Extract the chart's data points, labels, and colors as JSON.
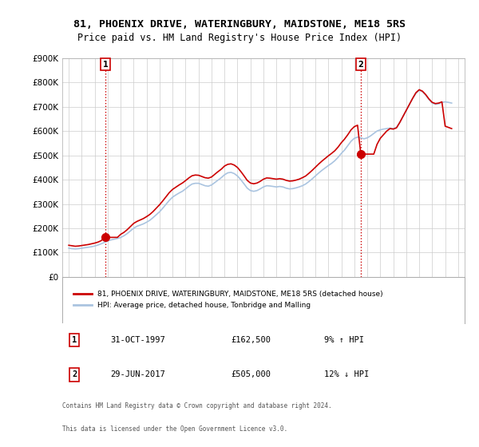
{
  "title1": "81, PHOENIX DRIVE, WATERINGBURY, MAIDSTONE, ME18 5RS",
  "title2": "Price paid vs. HM Land Registry's House Price Index (HPI)",
  "ylabel": "",
  "xlabel": "",
  "background_color": "#ffffff",
  "grid_color": "#cccccc",
  "hpi_color": "#aac4e0",
  "price_color": "#cc0000",
  "annotation1_date": "31-OCT-1997",
  "annotation1_price": "£162,500",
  "annotation1_hpi": "9% ↑ HPI",
  "annotation1_year": 1997.83,
  "annotation1_value": 162500,
  "annotation2_date": "29-JUN-2017",
  "annotation2_price": "£505,000",
  "annotation2_hpi": "12% ↓ HPI",
  "annotation2_year": 2017.5,
  "annotation2_value": 505000,
  "legend_label1": "81, PHOENIX DRIVE, WATERINGBURY, MAIDSTONE, ME18 5RS (detached house)",
  "legend_label2": "HPI: Average price, detached house, Tonbridge and Malling",
  "footer1": "Contains HM Land Registry data © Crown copyright and database right 2024.",
  "footer2": "This data is licensed under the Open Government Licence v3.0.",
  "table_row1": [
    "1",
    "31-OCT-1997",
    "£162,500",
    "9% ↑ HPI"
  ],
  "table_row2": [
    "2",
    "29-JUN-2017",
    "£505,000",
    "12% ↓ HPI"
  ],
  "hpi_years": [
    1995.0,
    1995.25,
    1995.5,
    1995.75,
    1996.0,
    1996.25,
    1996.5,
    1996.75,
    1997.0,
    1997.25,
    1997.5,
    1997.75,
    1998.0,
    1998.25,
    1998.5,
    1998.75,
    1999.0,
    1999.25,
    1999.5,
    1999.75,
    2000.0,
    2000.25,
    2000.5,
    2000.75,
    2001.0,
    2001.25,
    2001.5,
    2001.75,
    2002.0,
    2002.25,
    2002.5,
    2002.75,
    2003.0,
    2003.25,
    2003.5,
    2003.75,
    2004.0,
    2004.25,
    2004.5,
    2004.75,
    2005.0,
    2005.25,
    2005.5,
    2005.75,
    2006.0,
    2006.25,
    2006.5,
    2006.75,
    2007.0,
    2007.25,
    2007.5,
    2007.75,
    2008.0,
    2008.25,
    2008.5,
    2008.75,
    2009.0,
    2009.25,
    2009.5,
    2009.75,
    2010.0,
    2010.25,
    2010.5,
    2010.75,
    2011.0,
    2011.25,
    2011.5,
    2011.75,
    2012.0,
    2012.25,
    2012.5,
    2012.75,
    2013.0,
    2013.25,
    2013.5,
    2013.75,
    2014.0,
    2014.25,
    2014.5,
    2014.75,
    2015.0,
    2015.25,
    2015.5,
    2015.75,
    2016.0,
    2016.25,
    2016.5,
    2016.75,
    2017.0,
    2017.25,
    2017.5,
    2017.75,
    2018.0,
    2018.25,
    2018.5,
    2018.75,
    2019.0,
    2019.25,
    2019.5,
    2019.75,
    2020.0,
    2020.25,
    2020.5,
    2020.75,
    2021.0,
    2021.25,
    2021.5,
    2021.75,
    2022.0,
    2022.25,
    2022.5,
    2022.75,
    2023.0,
    2023.25,
    2023.5,
    2023.75,
    2024.0,
    2024.25,
    2024.5
  ],
  "hpi_values": [
    118000,
    116000,
    115000,
    116000,
    118000,
    120000,
    122000,
    124000,
    127000,
    131000,
    136000,
    142000,
    148000,
    152000,
    155000,
    158000,
    162000,
    169000,
    178000,
    189000,
    200000,
    208000,
    213000,
    218000,
    225000,
    233000,
    244000,
    256000,
    268000,
    283000,
    299000,
    315000,
    328000,
    337000,
    345000,
    352000,
    362000,
    373000,
    382000,
    385000,
    385000,
    380000,
    375000,
    373000,
    378000,
    388000,
    398000,
    408000,
    420000,
    428000,
    430000,
    425000,
    415000,
    400000,
    383000,
    365000,
    355000,
    352000,
    355000,
    362000,
    370000,
    375000,
    374000,
    372000,
    370000,
    372000,
    370000,
    365000,
    362000,
    363000,
    366000,
    370000,
    375000,
    382000,
    392000,
    403000,
    415000,
    427000,
    438000,
    448000,
    458000,
    467000,
    478000,
    492000,
    508000,
    522000,
    540000,
    558000,
    570000,
    575000,
    572000,
    568000,
    572000,
    580000,
    590000,
    600000,
    605000,
    608000,
    610000,
    612000,
    610000,
    615000,
    635000,
    660000,
    685000,
    710000,
    735000,
    755000,
    768000,
    762000,
    748000,
    730000,
    715000,
    710000,
    712000,
    718000,
    720000,
    718000,
    715000
  ],
  "price_years": [
    1995.0,
    1995.25,
    1995.5,
    1995.75,
    1996.0,
    1996.25,
    1996.5,
    1996.75,
    1997.0,
    1997.25,
    1997.5,
    1997.75,
    1998.0,
    1998.25,
    1998.5,
    1998.75,
    1999.0,
    1999.25,
    1999.5,
    1999.75,
    2000.0,
    2000.25,
    2000.5,
    2000.75,
    2001.0,
    2001.25,
    2001.5,
    2001.75,
    2002.0,
    2002.25,
    2002.5,
    2002.75,
    2003.0,
    2003.25,
    2003.5,
    2003.75,
    2004.0,
    2004.25,
    2004.5,
    2004.75,
    2005.0,
    2005.25,
    2005.5,
    2005.75,
    2006.0,
    2006.25,
    2006.5,
    2006.75,
    2007.0,
    2007.25,
    2007.5,
    2007.75,
    2008.0,
    2008.25,
    2008.5,
    2008.75,
    2009.0,
    2009.25,
    2009.5,
    2009.75,
    2010.0,
    2010.25,
    2010.5,
    2010.75,
    2011.0,
    2011.25,
    2011.5,
    2011.75,
    2012.0,
    2012.25,
    2012.5,
    2012.75,
    2013.0,
    2013.25,
    2013.5,
    2013.75,
    2014.0,
    2014.25,
    2014.5,
    2014.75,
    2015.0,
    2015.25,
    2015.5,
    2015.75,
    2016.0,
    2016.25,
    2016.5,
    2016.75,
    2017.0,
    2017.25,
    2017.5,
    2017.75,
    2018.0,
    2018.25,
    2018.5,
    2018.75,
    2019.0,
    2019.25,
    2019.5,
    2019.75,
    2020.0,
    2020.25,
    2020.5,
    2020.75,
    2021.0,
    2021.25,
    2021.5,
    2021.75,
    2022.0,
    2022.25,
    2022.5,
    2022.75,
    2023.0,
    2023.25,
    2023.5,
    2023.75,
    2024.0,
    2024.25,
    2024.5
  ],
  "price_values": [
    130000,
    128000,
    126000,
    127000,
    129000,
    131000,
    133000,
    136000,
    139000,
    143000,
    149000,
    162500,
    162500,
    162500,
    162500,
    162500,
    175000,
    183000,
    194000,
    207000,
    220000,
    228000,
    234000,
    240000,
    248000,
    257000,
    269000,
    283000,
    297000,
    313000,
    330000,
    347000,
    360000,
    369000,
    378000,
    386000,
    396000,
    407000,
    416000,
    419000,
    418000,
    413000,
    408000,
    406000,
    411000,
    422000,
    433000,
    443000,
    456000,
    463000,
    465000,
    460000,
    450000,
    434000,
    416000,
    397000,
    386000,
    383000,
    386000,
    393000,
    402000,
    407000,
    406000,
    404000,
    402000,
    404000,
    402000,
    397000,
    394000,
    395000,
    398000,
    402000,
    408000,
    415000,
    426000,
    438000,
    451000,
    464000,
    476000,
    487000,
    498000,
    508000,
    519000,
    534000,
    552000,
    567000,
    585000,
    605000,
    618000,
    624000,
    505000,
    505000,
    505000,
    505000,
    505000,
    545000,
    570000,
    585000,
    600000,
    610000,
    608000,
    613000,
    635000,
    660000,
    685000,
    710000,
    735000,
    758000,
    770000,
    764000,
    750000,
    732000,
    718000,
    713000,
    715000,
    720000,
    620000,
    615000,
    610000
  ],
  "ylim": [
    0,
    900000
  ],
  "xlim": [
    1994.5,
    2025.5
  ],
  "yticks": [
    0,
    100000,
    200000,
    300000,
    400000,
    500000,
    600000,
    700000,
    800000,
    900000
  ],
  "ytick_labels": [
    "£0",
    "£100K",
    "£200K",
    "£300K",
    "£400K",
    "£500K",
    "£600K",
    "£700K",
    "£800K",
    "£900K"
  ],
  "xticks": [
    1995,
    1996,
    1997,
    1998,
    1999,
    2000,
    2001,
    2002,
    2003,
    2004,
    2005,
    2006,
    2007,
    2008,
    2009,
    2010,
    2011,
    2012,
    2013,
    2014,
    2015,
    2016,
    2017,
    2018,
    2019,
    2020,
    2021,
    2022,
    2023,
    2024,
    2025
  ]
}
